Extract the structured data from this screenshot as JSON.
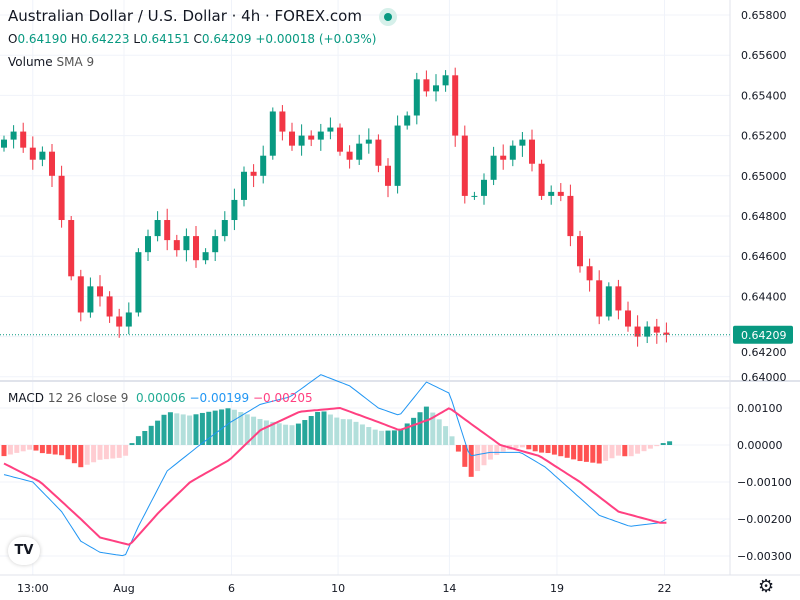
{
  "header": {
    "title": "Australian Dollar / U.S. Dollar · 4h · FOREX.com",
    "ohlc": {
      "o_label": "O",
      "o": "0.64190",
      "h_label": "H",
      "h": "0.64223",
      "l_label": "L",
      "l": "0.64151",
      "c_label": "C",
      "c": "0.64209",
      "change": "+0.00018 (+0.03%)"
    },
    "volume_label": "Volume",
    "volume_sma": "SMA 9"
  },
  "macd_legend": {
    "label": "MACD",
    "params": "12 26 close 9",
    "hist": "0.00006",
    "macd": "−0.00199",
    "signal": "−0.00205"
  },
  "colors": {
    "up": "#089981",
    "down": "#f23645",
    "macd": "#2196f3",
    "signal": "#ff4081",
    "market_open": "#089981"
  },
  "chart_data": [
    {
      "type": "candlestick",
      "title": "Australian Dollar / U.S. Dollar · 4h · FOREX.com",
      "ylim": [
        0.64,
        0.658
      ],
      "yticks": [
        "0.65800",
        "0.65600",
        "0.65400",
        "0.65200",
        "0.65000",
        "0.64800",
        "0.64600",
        "0.64400",
        "0.64200",
        "0.64000"
      ],
      "xticks": [
        {
          "label": "13:00",
          "index": 3
        },
        {
          "label": "Aug",
          "index": 12.5
        },
        {
          "label": "6",
          "index": 23.7
        },
        {
          "label": "10",
          "index": 34.8
        },
        {
          "label": "14",
          "index": 46.4
        },
        {
          "label": "19",
          "index": 57.6
        },
        {
          "label": "22",
          "index": 68.8
        }
      ],
      "last_price": "0.64209",
      "start_open": 0.6514,
      "closes": [
        0.6518,
        0.6522,
        0.6514,
        0.6508,
        0.6512,
        0.65,
        0.6478,
        0.645,
        0.6432,
        0.6445,
        0.644,
        0.643,
        0.6425,
        0.6432,
        0.6462,
        0.647,
        0.6478,
        0.6468,
        0.6463,
        0.647,
        0.6458,
        0.6462,
        0.647,
        0.6478,
        0.6488,
        0.6502,
        0.65,
        0.651,
        0.6532,
        0.6522,
        0.6515,
        0.652,
        0.6518,
        0.6522,
        0.6524,
        0.6512,
        0.6508,
        0.6516,
        0.6518,
        0.6505,
        0.6495,
        0.6525,
        0.653,
        0.6548,
        0.6542,
        0.6545,
        0.655,
        0.652,
        0.649,
        0.649,
        0.6498,
        0.651,
        0.6508,
        0.6515,
        0.6518,
        0.6506,
        0.649,
        0.6492,
        0.649,
        0.647,
        0.6455,
        0.6448,
        0.643,
        0.6445,
        0.6433,
        0.6425,
        0.642,
        0.6425,
        0.6422,
        0.64209
      ]
    },
    {
      "type": "line",
      "title": "MACD 12 26 close 9",
      "ylim": [
        -0.0033,
        0.0018
      ],
      "yticks": [
        "0.00100",
        "0.00000",
        "−0.00100",
        "−0.00200",
        "−0.00300"
      ],
      "yticks_values": [
        0.001,
        0,
        -0.001,
        -0.002,
        -0.003
      ],
      "macd": [
        [
          0,
          -0.0008
        ],
        [
          3,
          -0.001
        ],
        [
          6,
          -0.0018
        ],
        [
          8,
          -0.0026
        ],
        [
          10,
          -0.0029
        ],
        [
          12.6,
          -0.003
        ],
        [
          14,
          -0.0022
        ],
        [
          17,
          -0.0007
        ],
        [
          20.4,
          0.0
        ],
        [
          23.5,
          0.0006
        ],
        [
          26.7,
          0.0011
        ],
        [
          29.8,
          0.0013
        ],
        [
          33,
          0.0019
        ],
        [
          36,
          0.0016
        ],
        [
          39,
          0.001
        ],
        [
          41.2,
          0.0008
        ],
        [
          44,
          0.0017
        ],
        [
          46.4,
          0.0014
        ],
        [
          48.5,
          -0.0003
        ],
        [
          50.6,
          -0.0002
        ],
        [
          53.8,
          -0.0002
        ],
        [
          56.4,
          -0.0006
        ],
        [
          59,
          -0.0012
        ],
        [
          62,
          -0.0019
        ],
        [
          65.2,
          -0.0022
        ],
        [
          68.3,
          -0.0021
        ],
        [
          69,
          -0.002
        ]
      ],
      "signal": [
        [
          0,
          -0.0005
        ],
        [
          3.8,
          -0.001
        ],
        [
          8,
          -0.002
        ],
        [
          10,
          -0.0025
        ],
        [
          13.1,
          -0.0027
        ],
        [
          16.2,
          -0.0018
        ],
        [
          19.4,
          -0.001
        ],
        [
          23.5,
          -0.0004
        ],
        [
          26.7,
          0.0004
        ],
        [
          30.8,
          0.0009
        ],
        [
          35,
          0.001
        ],
        [
          39.2,
          0.0006
        ],
        [
          41.2,
          0.0004
        ],
        [
          44.4,
          0.0007
        ],
        [
          46.4,
          0.001
        ],
        [
          48.5,
          0.0006
        ],
        [
          51.7,
          0.0
        ],
        [
          55.8,
          -0.0003
        ],
        [
          60,
          -0.001
        ],
        [
          64,
          -0.0018
        ],
        [
          68.3,
          -0.0021
        ],
        [
          69,
          -0.0021
        ]
      ]
    }
  ]
}
